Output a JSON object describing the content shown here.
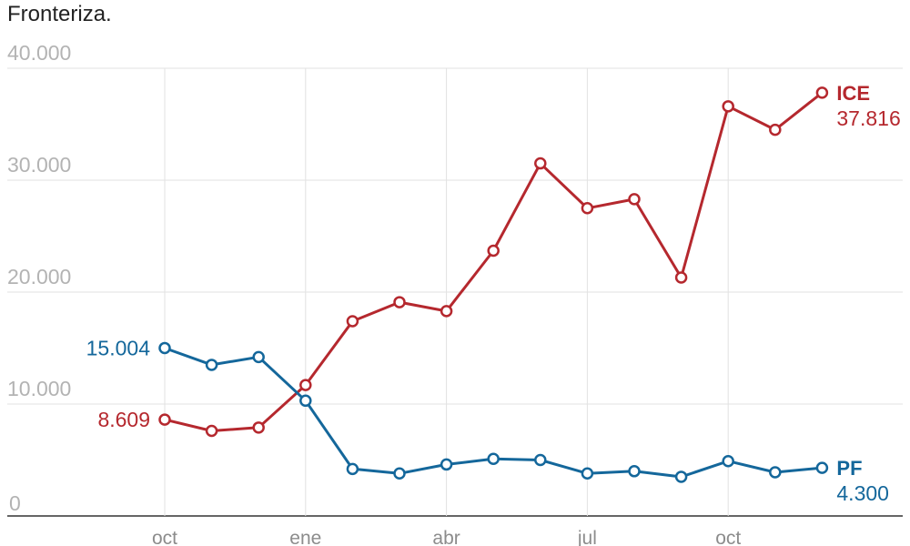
{
  "caption": "Fronteriza.",
  "chart_data": {
    "type": "line",
    "ylim": [
      0,
      40000
    ],
    "y_ticks": [
      {
        "value": 40000,
        "label": "40.000"
      },
      {
        "value": 30000,
        "label": "30.000"
      },
      {
        "value": 20000,
        "label": "20.000"
      },
      {
        "value": 10000,
        "label": "10.000"
      },
      {
        "value": 0,
        "label": "0"
      }
    ],
    "x": [
      1,
      2,
      3,
      4,
      5,
      6,
      7,
      8,
      9,
      10,
      11,
      12,
      13,
      14,
      15
    ],
    "x_ticks": [
      {
        "x": 1,
        "label": "oct"
      },
      {
        "x": 4,
        "label": "ene"
      },
      {
        "x": 7,
        "label": "abr"
      },
      {
        "x": 10,
        "label": "jul"
      },
      {
        "x": 13,
        "label": "oct"
      }
    ],
    "grid": true,
    "series": [
      {
        "name": "ICE",
        "color": "#b5282e",
        "values": [
          8609,
          7600,
          7900,
          11700,
          17400,
          19100,
          18300,
          23700,
          31500,
          27500,
          28300,
          21300,
          36600,
          34500,
          37816
        ],
        "start_label": "8.609",
        "end_label": "37.816"
      },
      {
        "name": "PF",
        "color": "#14679b",
        "values": [
          15004,
          13500,
          14200,
          10300,
          4200,
          3800,
          4600,
          5100,
          5000,
          3800,
          4000,
          3500,
          4900,
          3900,
          4300
        ],
        "start_label": "15.004",
        "end_label": "4.300"
      }
    ]
  }
}
